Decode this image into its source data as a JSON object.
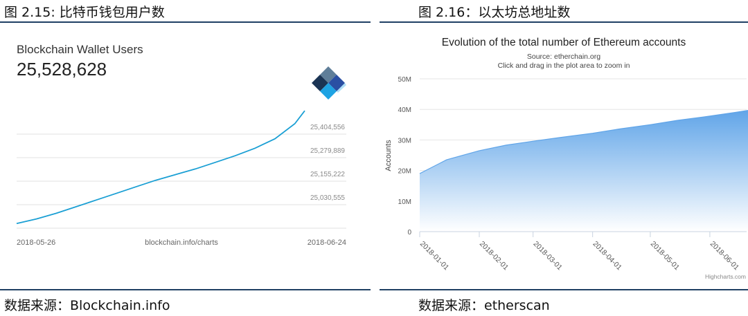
{
  "left": {
    "figure_title": "图 2.15: 比特币钱包用户数",
    "source": "数据来源：Blockchain.info",
    "card_title": "Blockchain Wallet Users",
    "card_value": "25,528,628",
    "footer_center": "blockchain.info/charts",
    "logo": "blockchain-logo-icon"
  },
  "right": {
    "figure_title": "图 2.16：以太坊总地址数",
    "source": "数据来源：etherscan",
    "credit": "Highcharts.com"
  },
  "chart_data": [
    {
      "type": "line",
      "title": "Blockchain Wallet Users",
      "x_tick_labels": [
        "2018-05-26",
        "2018-06-24"
      ],
      "y_tick_labels": [
        "25,030,555",
        "25,155,222",
        "25,279,889",
        "25,404,556"
      ],
      "y_ticks": [
        25030555,
        25155222,
        25279889,
        25404556
      ],
      "ylim": [
        24905888,
        25529223
      ],
      "x": [
        "2018-05-26",
        "2018-05-28",
        "2018-05-30",
        "2018-06-01",
        "2018-06-03",
        "2018-06-05",
        "2018-06-07",
        "2018-06-09",
        "2018-06-11",
        "2018-06-13",
        "2018-06-15",
        "2018-06-17",
        "2018-06-19",
        "2018-06-21",
        "2018-06-23",
        "2018-06-24"
      ],
      "values": [
        24931000,
        24955000,
        24985000,
        25020000,
        25055000,
        25090000,
        25125000,
        25160000,
        25190000,
        25220000,
        25255000,
        25290000,
        25330000,
        25380000,
        25460000,
        25528628
      ],
      "grid": true,
      "color": "#1a9fd4"
    },
    {
      "type": "area",
      "title": "Evolution of the total number of Ethereum accounts",
      "subtitle_lines": [
        "Source: etherchain.org",
        "Click and drag in the plot area to zoom in"
      ],
      "ylabel": "Accounts",
      "y_tick_labels": [
        "0",
        "10M",
        "20M",
        "30M",
        "40M",
        "50M"
      ],
      "y_ticks": [
        0,
        10000000,
        20000000,
        30000000,
        40000000,
        50000000
      ],
      "ylim": [
        0,
        50000000
      ],
      "x_tick_labels": [
        "2018-01-01",
        "2018-02-01",
        "2018-03-01",
        "2018-04-01",
        "2018-05-01",
        "2018-06-01"
      ],
      "x_ticks": [
        "2018-01-01",
        "2018-02-01",
        "2018-03-01",
        "2018-04-01",
        "2018-05-01",
        "2018-06-01"
      ],
      "x": [
        "2018-01-01",
        "2018-01-15",
        "2018-02-01",
        "2018-02-15",
        "2018-03-01",
        "2018-03-15",
        "2018-04-01",
        "2018-04-15",
        "2018-05-01",
        "2018-05-15",
        "2018-06-01",
        "2018-06-15",
        "2018-06-24"
      ],
      "values": [
        19000000,
        23500000,
        26500000,
        28300000,
        29600000,
        30800000,
        32200000,
        33600000,
        35000000,
        36400000,
        37800000,
        39100000,
        40000000
      ],
      "grid": true,
      "color": "#5fa4e8"
    }
  ]
}
